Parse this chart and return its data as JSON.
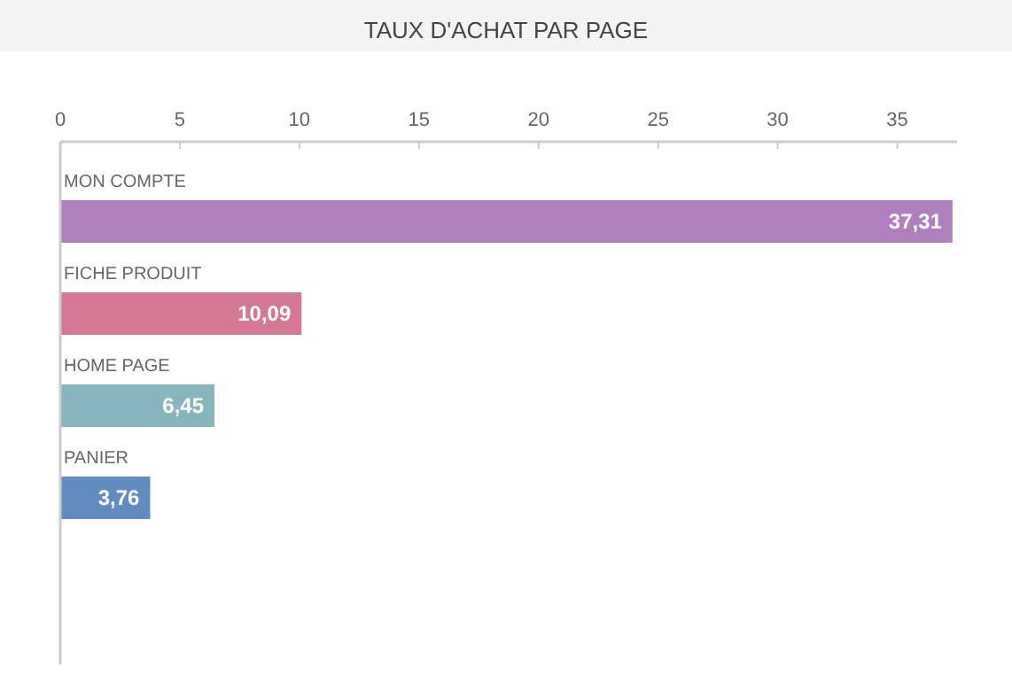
{
  "chart_data": {
    "type": "bar",
    "orientation": "horizontal",
    "title": "TAUX D'ACHAT PAR PAGE",
    "categories": [
      "MON COMPTE",
      "FICHE PRODUIT",
      "HOME PAGE",
      "PANIER"
    ],
    "values": [
      37.31,
      10.09,
      6.45,
      3.76
    ],
    "colors": [
      "#b07fbd",
      "#d47995",
      "#86b6bd",
      "#608cc0"
    ],
    "value_labels": [
      "37,31",
      "10,09",
      "6,45",
      "3,76"
    ],
    "xlim": [
      0,
      37.5
    ],
    "xticks": [
      0,
      5,
      10,
      15,
      20,
      25,
      30,
      35
    ],
    "grid": false
  }
}
